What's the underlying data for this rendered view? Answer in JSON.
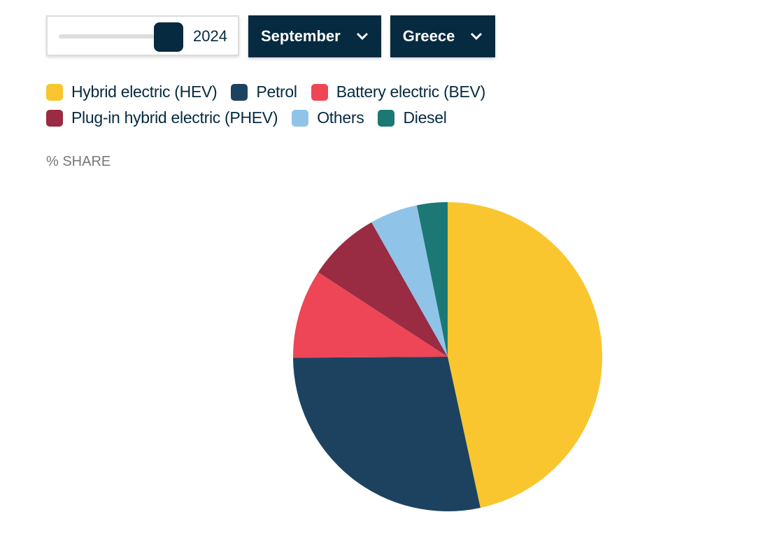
{
  "controls": {
    "year": "2024",
    "month": "September",
    "country": "Greece"
  },
  "chart_data": {
    "type": "pie",
    "subtitle": "% SHARE",
    "categories": [
      "Hybrid electric (HEV)",
      "Petrol",
      "Battery electric (BEV)",
      "Plug-in hybrid electric (PHEV)",
      "Others",
      "Diesel"
    ],
    "values": [
      46.6,
      28.3,
      9.3,
      7.6,
      5.0,
      3.2
    ],
    "colors": [
      "#f9c62f",
      "#1d4260",
      "#ee4656",
      "#992b42",
      "#8fc4e8",
      "#1c7874"
    ]
  }
}
